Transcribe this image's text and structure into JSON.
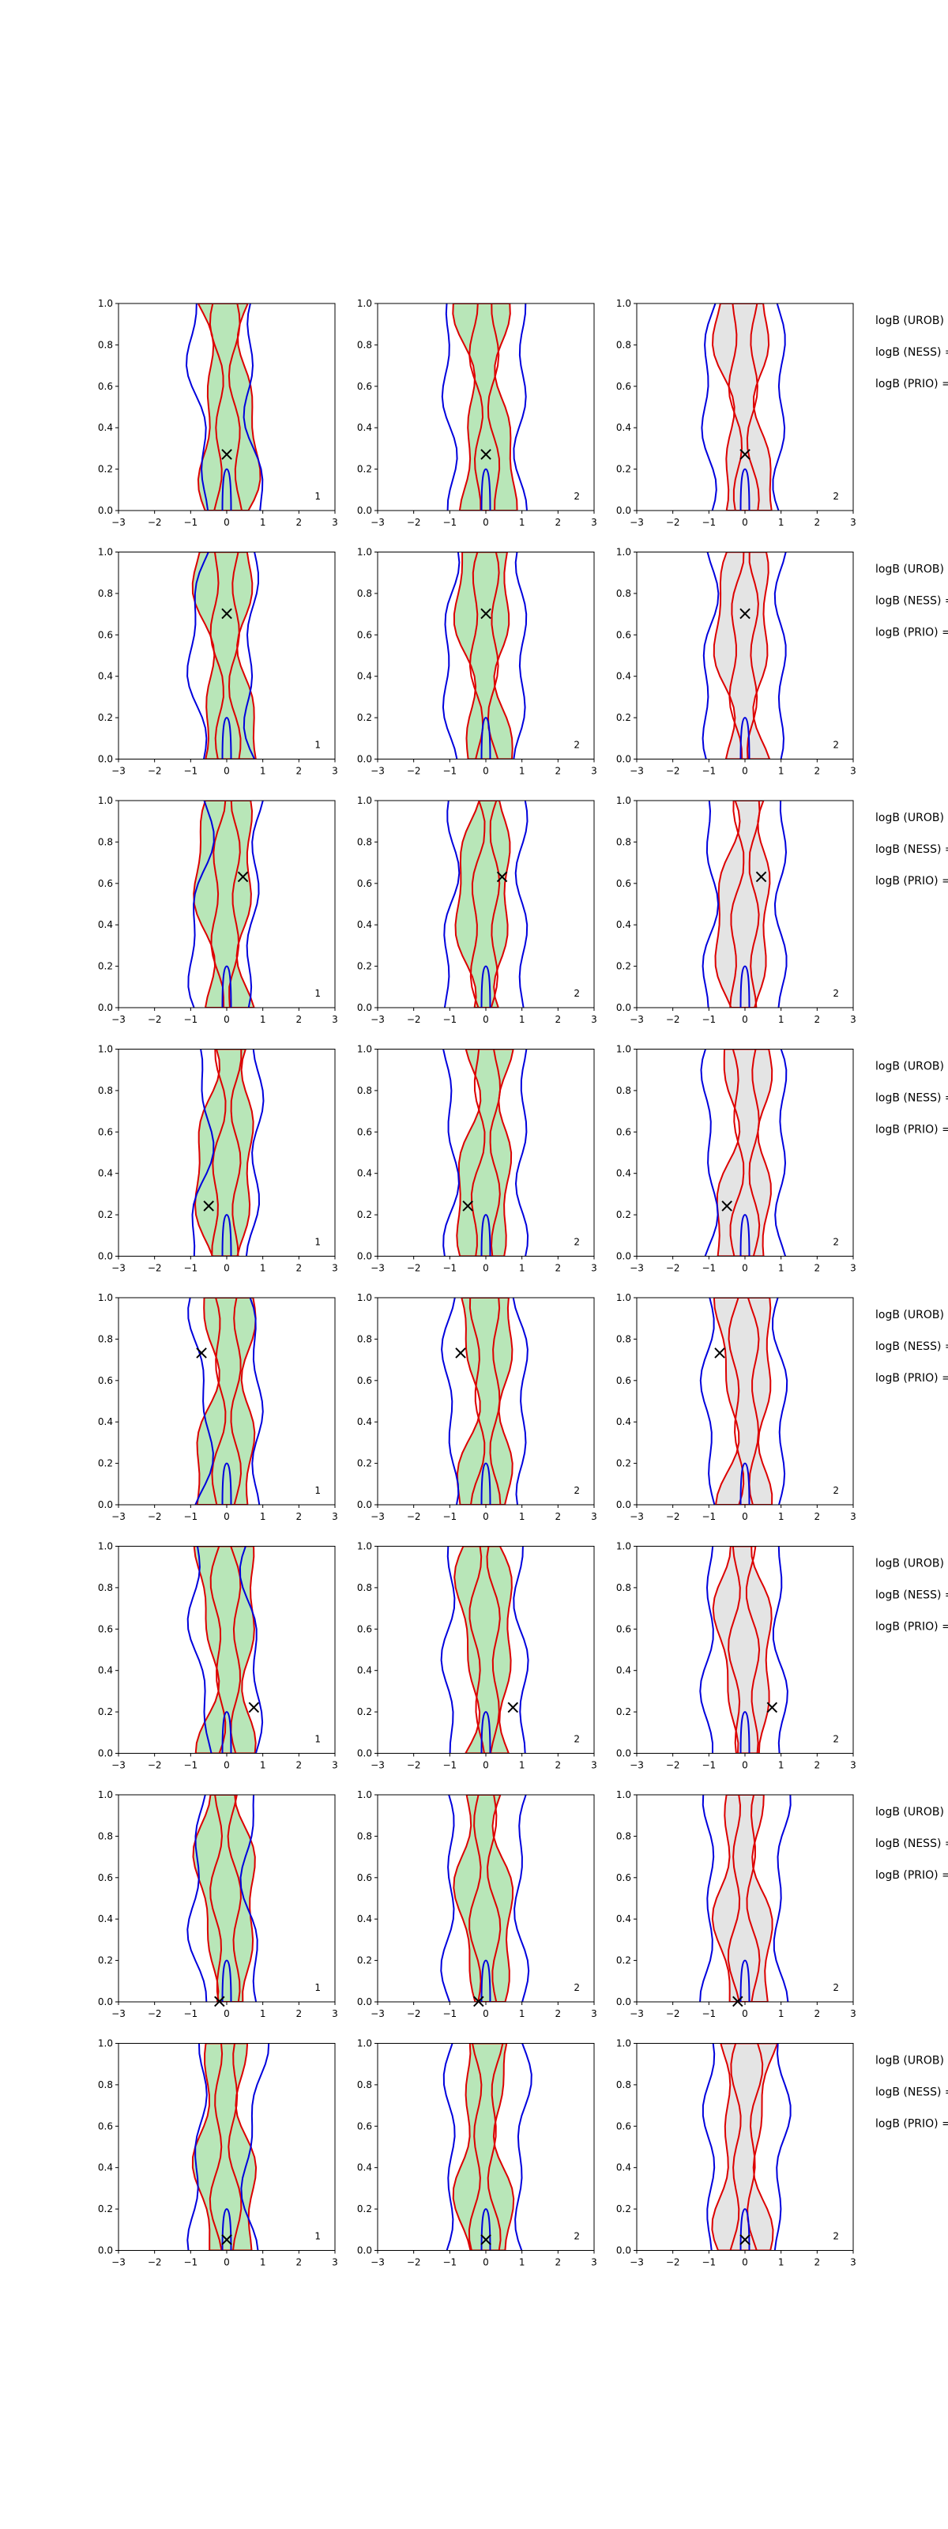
{
  "figure": {
    "annotations": [
      "logB (UROB) =",
      "logB (NESS) =",
      "logB (PRIO) ="
    ]
  },
  "chart_data": {
    "type": "contour",
    "rows": 8,
    "cols": 3,
    "xlim": [
      -3,
      3
    ],
    "ylim": [
      0.0,
      1.0
    ],
    "xticks": [
      -3,
      -2,
      -1,
      0,
      1,
      2,
      3
    ],
    "yticks": [
      0.0,
      0.2,
      0.4,
      0.6,
      0.8,
      1.0
    ],
    "xtick_labels": [
      "−3",
      "−2",
      "−1",
      "0",
      "1",
      "2",
      "3"
    ],
    "ytick_labels": [
      "0.0",
      "0.2",
      "0.4",
      "0.6",
      "0.8",
      "1.0"
    ],
    "panel_labels": [
      "1",
      "2",
      "2"
    ],
    "marker_symbol": "×",
    "colors": {
      "fill_green": "#b8e6b8",
      "fill_gray": "#e4e4e4",
      "red_contour": "#dd0000",
      "blue_contour": "#0000dd",
      "marker": "#000000"
    },
    "markers": [
      {
        "row": 1,
        "x": 0.0,
        "y": 0.27
      },
      {
        "row": 2,
        "x": 0.0,
        "y": 0.7
      },
      {
        "row": 3,
        "x": 0.45,
        "y": 0.63
      },
      {
        "row": 4,
        "x": -0.5,
        "y": 0.24
      },
      {
        "row": 5,
        "x": -0.7,
        "y": 0.73
      },
      {
        "row": 6,
        "x": 0.75,
        "y": 0.22
      },
      {
        "row": 7,
        "x": -0.2,
        "y": 0.0
      },
      {
        "row": 8,
        "x": 0.0,
        "y": 0.05
      }
    ]
  }
}
